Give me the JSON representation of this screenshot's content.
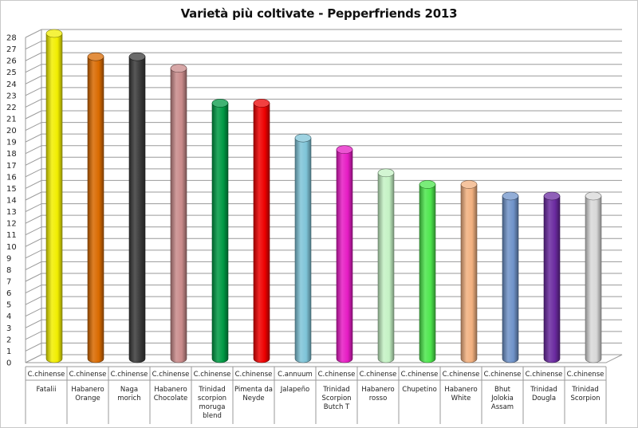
{
  "chart_data": {
    "type": "bar",
    "title": "Varietà più coltivate - Pepperfriends 2013",
    "xlabel": "",
    "ylabel": "",
    "ylim": [
      0,
      28
    ],
    "yticks": [
      0,
      1,
      2,
      3,
      4,
      5,
      6,
      7,
      8,
      9,
      10,
      11,
      12,
      13,
      14,
      15,
      16,
      17,
      18,
      19,
      20,
      21,
      22,
      23,
      24,
      25,
      26,
      27,
      28
    ],
    "grid": true,
    "legend": "none",
    "categories": [
      {
        "species": "C.chinense",
        "name": [
          "Fatalii"
        ]
      },
      {
        "species": "C.chinense",
        "name": [
          "Habanero",
          "Orange"
        ]
      },
      {
        "species": "C.chinense",
        "name": [
          "Naga",
          "morich"
        ]
      },
      {
        "species": "C.chinense",
        "name": [
          "Habanero",
          "Chocolate"
        ]
      },
      {
        "species": "C.chinense",
        "name": [
          "Trinidad",
          "scorpion",
          "moruga",
          "blend"
        ]
      },
      {
        "species": "C.chinense",
        "name": [
          "Pimenta da",
          "Neyde"
        ]
      },
      {
        "species": "C.annuum",
        "name": [
          "Jalapeño"
        ]
      },
      {
        "species": "C.chinense",
        "name": [
          "Trinidad",
          "Scorpion",
          "Butch T"
        ]
      },
      {
        "species": "C.chinense",
        "name": [
          "Habanero",
          "rosso"
        ]
      },
      {
        "species": "C.chinense",
        "name": [
          "Chupetino"
        ]
      },
      {
        "species": "C.chinense",
        "name": [
          "Habanero",
          "White"
        ]
      },
      {
        "species": "C.chinense",
        "name": [
          "Bhut",
          "Jolokia",
          "Assam"
        ]
      },
      {
        "species": "C.chinense",
        "name": [
          "Trinidad",
          "Dougla"
        ]
      },
      {
        "species": "C.chinense",
        "name": [
          "Trinidad",
          "Scorpion"
        ]
      }
    ],
    "values": [
      28,
      26,
      26,
      25,
      22,
      22,
      19,
      18,
      16,
      15,
      15,
      14,
      14,
      14
    ],
    "colors": [
      "#f2ee00",
      "#d96a00",
      "#3a3a3a",
      "#c98a8a",
      "#009a44",
      "#ee0000",
      "#7fc4d8",
      "#e61cc4",
      "#c4f2c4",
      "#4de64d",
      "#f2b07f",
      "#6f93c9",
      "#6a2aa0",
      "#d8d8d8"
    ]
  }
}
